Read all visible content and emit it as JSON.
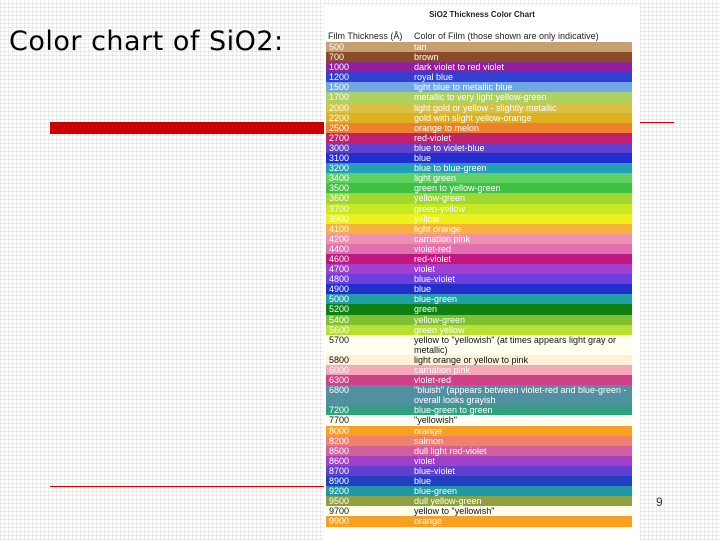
{
  "slide": {
    "title": "Color chart of SiO2:",
    "page_number": "9"
  },
  "chart": {
    "title": "SiO2 Thickness Color Chart",
    "header_thickness": "Film Thickness (Å)",
    "header_color": "Color of Film (those shown are only indicative)",
    "rows": [
      {
        "t": "500",
        "c": "tan",
        "bg": "#c8a070",
        "dark": false
      },
      {
        "t": "700",
        "c": "brown",
        "bg": "#8b4a2a",
        "dark": false
      },
      {
        "t": "1000",
        "c": "dark violet to red violet",
        "bg": "#9020a0",
        "dark": false
      },
      {
        "t": "1200",
        "c": "royal blue",
        "bg": "#3040d0",
        "dark": false
      },
      {
        "t": "1500",
        "c": "light blue to metallic blue",
        "bg": "#70a8e0",
        "dark": false
      },
      {
        "t": "1700",
        "c": "metallic to very light yellow-green",
        "bg": "#b0d060",
        "dark": false
      },
      {
        "t": "2000",
        "c": "light gold or yellow - slightly metallic",
        "bg": "#d8c040",
        "dark": false
      },
      {
        "t": "2200",
        "c": "gold with slight yellow-orange",
        "bg": "#e0b020",
        "dark": false
      },
      {
        "t": "2500",
        "c": "orange to melon",
        "bg": "#f08030",
        "dark": false
      },
      {
        "t": "2700",
        "c": "red-violet",
        "bg": "#c02070",
        "dark": false
      },
      {
        "t": "3000",
        "c": "blue to violet-blue",
        "bg": "#6040d0",
        "dark": false
      },
      {
        "t": "3100",
        "c": "blue",
        "bg": "#2030d0",
        "dark": false
      },
      {
        "t": "3200",
        "c": "blue to blue-green",
        "bg": "#20a0b0",
        "dark": false
      },
      {
        "t": "3400",
        "c": "light green",
        "bg": "#60d060",
        "dark": false
      },
      {
        "t": "3500",
        "c": "green to yellow-green",
        "bg": "#40c040",
        "dark": false
      },
      {
        "t": "3600",
        "c": "yellow-green",
        "bg": "#a0d830",
        "dark": false
      },
      {
        "t": "3700",
        "c": "green-yellow",
        "bg": "#c8e820",
        "dark": false
      },
      {
        "t": "3900",
        "c": "yellow",
        "bg": "#f0f020",
        "dark": false
      },
      {
        "t": "4100",
        "c": "light orange",
        "bg": "#f8b040",
        "dark": false
      },
      {
        "t": "4200",
        "c": "carnation pink",
        "bg": "#f090b0",
        "dark": false
      },
      {
        "t": "4400",
        "c": "violet-red",
        "bg": "#e070b0",
        "dark": false
      },
      {
        "t": "4600",
        "c": "red-violet",
        "bg": "#c01880",
        "dark": false
      },
      {
        "t": "4700",
        "c": "violet",
        "bg": "#a040d0",
        "dark": false
      },
      {
        "t": "4800",
        "c": "blue-violet",
        "bg": "#6a40e0",
        "dark": false
      },
      {
        "t": "4900",
        "c": "blue",
        "bg": "#2030c8",
        "dark": false
      },
      {
        "t": "5000",
        "c": "blue-green",
        "bg": "#20a0a0",
        "dark": false
      },
      {
        "t": "5200",
        "c": "green",
        "bg": "#108010",
        "dark": false
      },
      {
        "t": "5400",
        "c": "yellow-green",
        "bg": "#80c030",
        "dark": false
      },
      {
        "t": "5600",
        "c": "green yellow",
        "bg": "#b8e030",
        "dark": false
      },
      {
        "t": "5700",
        "c": "yellow to \"yellowish\" (at times appears light gray or metallic)",
        "bg": "#fffff0",
        "dark": true,
        "tall": true
      },
      {
        "t": "5800",
        "c": "light orange or yellow to pink",
        "bg": "#fff0d8",
        "dark": true
      },
      {
        "t": "6000",
        "c": "carnation pink",
        "bg": "#f7a8b8",
        "dark": false
      },
      {
        "t": "6300",
        "c": "violet-red",
        "bg": "#d0408a",
        "dark": false
      },
      {
        "t": "6800",
        "c": "\"bluish\" (appears between violet-red and blue-green - overall looks grayish",
        "bg": "#5090a0",
        "dark": false,
        "tall": true
      },
      {
        "t": "7200",
        "c": "blue-green to green",
        "bg": "#30a080",
        "dark": false
      },
      {
        "t": "7700",
        "c": "\"yellowish\"",
        "bg": "#fffff0",
        "dark": true
      },
      {
        "t": "8000",
        "c": "orange",
        "bg": "#f8a020",
        "dark": false
      },
      {
        "t": "8200",
        "c": "salmon",
        "bg": "#f08070",
        "dark": false
      },
      {
        "t": "8500",
        "c": "dull light red-violet",
        "bg": "#d060a0",
        "dark": false
      },
      {
        "t": "8600",
        "c": "violet",
        "bg": "#a040c8",
        "dark": false
      },
      {
        "t": "8700",
        "c": "blue-violet",
        "bg": "#6040d0",
        "dark": false
      },
      {
        "t": "8900",
        "c": "blue",
        "bg": "#2040c0",
        "dark": false
      },
      {
        "t": "9200",
        "c": "blue-green",
        "bg": "#2098a0",
        "dark": false
      },
      {
        "t": "9500",
        "c": "dull yellow-green",
        "bg": "#90a040",
        "dark": false
      },
      {
        "t": "9700",
        "c": "yellow to \"yellowish\"",
        "bg": "#fffff0",
        "dark": true
      },
      {
        "t": "9900",
        "c": "orange",
        "bg": "#f8a020",
        "dark": false
      }
    ]
  }
}
